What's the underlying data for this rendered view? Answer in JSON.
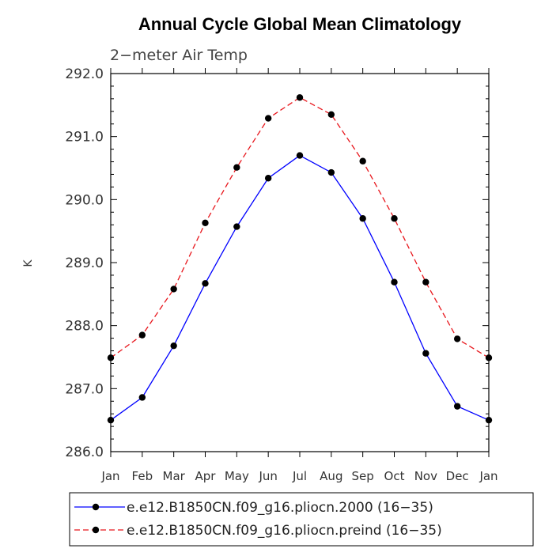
{
  "chart_data": {
    "type": "line",
    "title": "Annual Cycle Global Mean Climatology",
    "subtitle": "2−meter Air Temp",
    "xlabel": "",
    "ylabel": "K",
    "categories": [
      "Jan",
      "Feb",
      "Mar",
      "Apr",
      "May",
      "Jun",
      "Jul",
      "Aug",
      "Sep",
      "Oct",
      "Nov",
      "Dec",
      "Jan"
    ],
    "ylim": [
      286.0,
      292.0
    ],
    "yticks": [
      "286.0",
      "287.0",
      "288.0",
      "289.0",
      "290.0",
      "291.0",
      "292.0"
    ],
    "grid": false,
    "legend_position": "bottom",
    "series": [
      {
        "name": "e.e12.B1850CN.f09_g16.pliocn.2000 (16−35)",
        "color": "#0000ff",
        "line_style": "solid",
        "marker": "filled-circle",
        "values": [
          286.5,
          286.86,
          287.68,
          288.67,
          289.57,
          290.34,
          290.7,
          290.43,
          289.7,
          288.69,
          287.56,
          286.72,
          286.5
        ]
      },
      {
        "name": "e.e12.B1850CN.f09_g16.pliocn.preind (16−35)",
        "color": "#e8151b",
        "line_style": "dashed",
        "marker": "filled-circle",
        "values": [
          287.49,
          287.85,
          288.58,
          289.63,
          290.51,
          291.29,
          291.62,
          291.35,
          290.61,
          289.7,
          288.69,
          287.79,
          287.49
        ]
      }
    ]
  }
}
